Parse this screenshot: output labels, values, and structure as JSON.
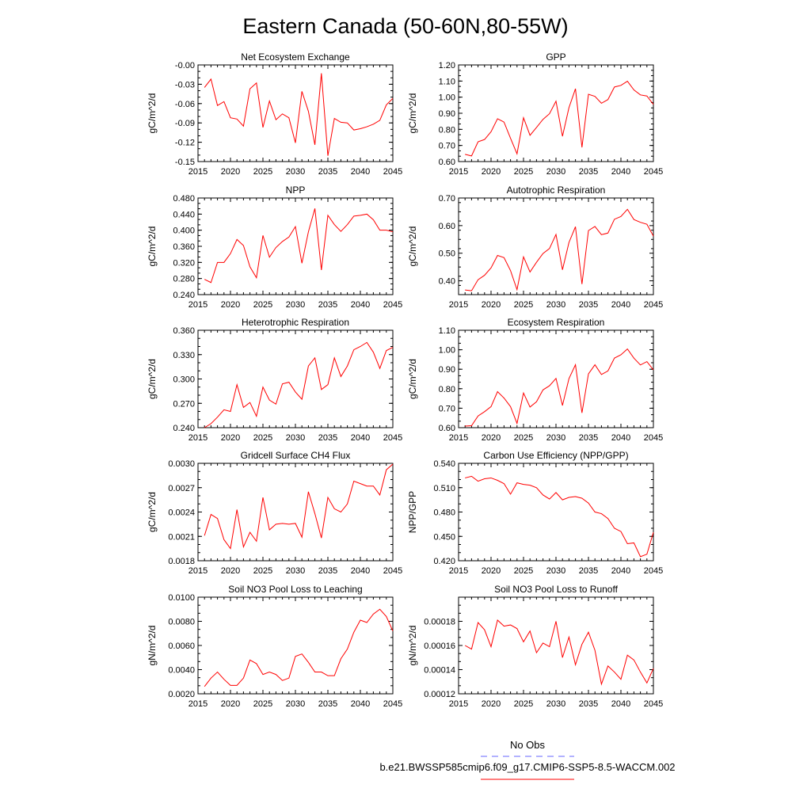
{
  "title": "Eastern Canada (50-60N,80-55W)",
  "legend": {
    "obs_label": "No Obs",
    "obs_color": "#6666ff",
    "model_label": "b.e21.BWSSP585cmip6.f09_g17.CMIP6-SSP5-8.5-WACCM.002",
    "model_color": "#ff0000"
  },
  "chart_data": [
    {
      "type": "line",
      "title": "Net Ecosystem Exchange",
      "ylabel": "gC/m^2/d",
      "xlim": [
        2015,
        2045
      ],
      "ylim": [
        -0.15,
        0.0
      ],
      "xticks": [
        2015,
        2020,
        2025,
        2030,
        2035,
        2040,
        2045
      ],
      "yticks": [
        "-0.00",
        "-0.03",
        "-0.06",
        "-0.09",
        "-0.12",
        "-0.15"
      ],
      "ytick_values": [
        0.0,
        -0.03,
        -0.06,
        -0.09,
        -0.12,
        -0.15
      ],
      "x": [
        2016,
        2017,
        2018,
        2019,
        2020,
        2021,
        2022,
        2023,
        2024,
        2025,
        2026,
        2027,
        2028,
        2029,
        2030,
        2031,
        2032,
        2033,
        2034,
        2035,
        2036,
        2037,
        2038,
        2039,
        2040,
        2041,
        2042,
        2043,
        2044,
        2045
      ],
      "values": [
        -0.035,
        -0.022,
        -0.063,
        -0.057,
        -0.082,
        -0.084,
        -0.095,
        -0.037,
        -0.028,
        -0.097,
        -0.056,
        -0.085,
        -0.076,
        -0.082,
        -0.121,
        -0.041,
        -0.072,
        -0.124,
        -0.013,
        -0.141,
        -0.083,
        -0.089,
        -0.09,
        -0.101,
        -0.099,
        -0.096,
        -0.092,
        -0.086,
        -0.062,
        -0.052
      ]
    },
    {
      "type": "line",
      "title": "GPP",
      "ylabel": "gC/m^2/d",
      "xlim": [
        2015,
        2045
      ],
      "ylim": [
        0.6,
        1.2
      ],
      "xticks": [
        2015,
        2020,
        2025,
        2030,
        2035,
        2040,
        2045
      ],
      "yticks": [
        "1.20",
        "1.10",
        "1.00",
        "0.90",
        "0.80",
        "0.70",
        "0.60"
      ],
      "ytick_values": [
        1.2,
        1.1,
        1.0,
        0.9,
        0.8,
        0.7,
        0.6
      ],
      "x": [
        2016,
        2017,
        2018,
        2019,
        2020,
        2021,
        2022,
        2023,
        2024,
        2025,
        2026,
        2027,
        2028,
        2029,
        2030,
        2031,
        2032,
        2033,
        2034,
        2035,
        2036,
        2037,
        2038,
        2039,
        2040,
        2041,
        2042,
        2043,
        2044,
        2045
      ],
      "values": [
        0.645,
        0.635,
        0.723,
        0.737,
        0.785,
        0.866,
        0.845,
        0.745,
        0.648,
        0.872,
        0.763,
        0.812,
        0.862,
        0.897,
        0.975,
        0.757,
        0.935,
        1.052,
        0.688,
        1.018,
        1.005,
        0.962,
        0.985,
        1.063,
        1.073,
        1.099,
        1.045,
        1.014,
        1.007,
        0.955
      ]
    },
    {
      "type": "line",
      "title": "NPP",
      "ylabel": "gC/m^2/d",
      "xlim": [
        2015,
        2045
      ],
      "ylim": [
        0.24,
        0.48
      ],
      "xticks": [
        2015,
        2020,
        2025,
        2030,
        2035,
        2040,
        2045
      ],
      "yticks": [
        "0.480",
        "0.440",
        "0.400",
        "0.360",
        "0.320",
        "0.280",
        "0.240"
      ],
      "ytick_values": [
        0.48,
        0.44,
        0.4,
        0.36,
        0.32,
        0.28,
        0.24
      ],
      "x": [
        2016,
        2017,
        2018,
        2019,
        2020,
        2021,
        2022,
        2023,
        2024,
        2025,
        2026,
        2027,
        2028,
        2029,
        2030,
        2031,
        2032,
        2033,
        2034,
        2035,
        2036,
        2037,
        2038,
        2039,
        2040,
        2041,
        2042,
        2043,
        2044,
        2045
      ],
      "values": [
        0.278,
        0.27,
        0.32,
        0.32,
        0.342,
        0.377,
        0.362,
        0.309,
        0.282,
        0.387,
        0.333,
        0.357,
        0.372,
        0.383,
        0.409,
        0.318,
        0.396,
        0.454,
        0.301,
        0.437,
        0.414,
        0.397,
        0.414,
        0.435,
        0.437,
        0.44,
        0.426,
        0.4,
        0.4,
        0.396
      ]
    },
    {
      "type": "line",
      "title": "Autotrophic Respiration",
      "ylabel": "gC/m^2/d",
      "xlim": [
        2015,
        2045
      ],
      "ylim": [
        0.35,
        0.7
      ],
      "xticks": [
        2015,
        2020,
        2025,
        2030,
        2035,
        2040,
        2045
      ],
      "yticks": [
        "0.70",
        "0.60",
        "0.50",
        "0.40"
      ],
      "ytick_values": [
        0.7,
        0.6,
        0.5,
        0.4
      ],
      "x": [
        2016,
        2017,
        2018,
        2019,
        2020,
        2021,
        2022,
        2023,
        2024,
        2025,
        2026,
        2027,
        2028,
        2029,
        2030,
        2031,
        2032,
        2033,
        2034,
        2035,
        2036,
        2037,
        2038,
        2039,
        2040,
        2041,
        2042,
        2043,
        2044,
        2045
      ],
      "values": [
        0.367,
        0.364,
        0.404,
        0.42,
        0.447,
        0.492,
        0.484,
        0.437,
        0.368,
        0.487,
        0.432,
        0.467,
        0.499,
        0.517,
        0.568,
        0.44,
        0.539,
        0.596,
        0.388,
        0.582,
        0.597,
        0.567,
        0.573,
        0.623,
        0.633,
        0.659,
        0.622,
        0.612,
        0.605,
        0.562
      ]
    },
    {
      "type": "line",
      "title": "Heterotrophic Respiration",
      "ylabel": "gC/m^2/d",
      "xlim": [
        2015,
        2045
      ],
      "ylim": [
        0.24,
        0.36
      ],
      "xticks": [
        2015,
        2020,
        2025,
        2030,
        2035,
        2040,
        2045
      ],
      "yticks": [
        "0.360",
        "0.330",
        "0.300",
        "0.270",
        "0.240"
      ],
      "ytick_values": [
        0.36,
        0.33,
        0.3,
        0.27,
        0.24
      ],
      "x": [
        2016,
        2017,
        2018,
        2019,
        2020,
        2021,
        2022,
        2023,
        2024,
        2025,
        2026,
        2027,
        2028,
        2029,
        2030,
        2031,
        2032,
        2033,
        2034,
        2035,
        2036,
        2037,
        2038,
        2039,
        2040,
        2041,
        2042,
        2043,
        2044,
        2045
      ],
      "values": [
        0.24,
        0.245,
        0.253,
        0.262,
        0.26,
        0.293,
        0.265,
        0.271,
        0.254,
        0.29,
        0.274,
        0.269,
        0.294,
        0.296,
        0.284,
        0.275,
        0.316,
        0.326,
        0.287,
        0.293,
        0.326,
        0.303,
        0.316,
        0.336,
        0.34,
        0.345,
        0.333,
        0.313,
        0.335,
        0.339
      ]
    },
    {
      "type": "line",
      "title": "Ecosystem Respiration",
      "ylabel": "gC/m^2/d",
      "xlim": [
        2015,
        2045
      ],
      "ylim": [
        0.6,
        1.1
      ],
      "xticks": [
        2015,
        2020,
        2025,
        2030,
        2035,
        2040,
        2045
      ],
      "yticks": [
        "1.10",
        "1.00",
        "0.90",
        "0.80",
        "0.70",
        "0.60"
      ],
      "ytick_values": [
        1.1,
        1.0,
        0.9,
        0.8,
        0.7,
        0.6
      ],
      "x": [
        2016,
        2017,
        2018,
        2019,
        2020,
        2021,
        2022,
        2023,
        2024,
        2025,
        2026,
        2027,
        2028,
        2029,
        2030,
        2031,
        2032,
        2033,
        2034,
        2035,
        2036,
        2037,
        2038,
        2039,
        2040,
        2041,
        2042,
        2043,
        2044,
        2045
      ],
      "values": [
        0.608,
        0.61,
        0.66,
        0.682,
        0.708,
        0.785,
        0.752,
        0.708,
        0.622,
        0.778,
        0.706,
        0.733,
        0.794,
        0.815,
        0.853,
        0.714,
        0.852,
        0.923,
        0.676,
        0.876,
        0.923,
        0.873,
        0.891,
        0.957,
        0.974,
        1.004,
        0.957,
        0.922,
        0.939,
        0.897
      ]
    },
    {
      "type": "line",
      "title": "Gridcell Surface CH4 Flux",
      "ylabel": "gC/m^2/d",
      "xlim": [
        2015,
        2045
      ],
      "ylim": [
        0.0018,
        0.003
      ],
      "xticks": [
        2015,
        2020,
        2025,
        2030,
        2035,
        2040,
        2045
      ],
      "yticks": [
        "0.0030",
        "0.0027",
        "0.0024",
        "0.0021",
        "0.0018"
      ],
      "ytick_values": [
        0.003,
        0.0027,
        0.0024,
        0.0021,
        0.0018
      ],
      "x": [
        2016,
        2017,
        2018,
        2019,
        2020,
        2021,
        2022,
        2023,
        2024,
        2025,
        2026,
        2027,
        2028,
        2029,
        2030,
        2031,
        2032,
        2033,
        2034,
        2035,
        2036,
        2037,
        2038,
        2039,
        2040,
        2041,
        2042,
        2043,
        2044,
        2045
      ],
      "values": [
        0.00211,
        0.00237,
        0.00232,
        0.00206,
        0.00195,
        0.00243,
        0.00197,
        0.00215,
        0.00204,
        0.00258,
        0.00218,
        0.00225,
        0.00226,
        0.00225,
        0.00226,
        0.00209,
        0.00265,
        0.00238,
        0.00208,
        0.00258,
        0.00244,
        0.0024,
        0.0025,
        0.00278,
        0.00275,
        0.00272,
        0.00272,
        0.00261,
        0.00292,
        0.00299
      ]
    },
    {
      "type": "line",
      "title": "Carbon Use Efficiency (NPP/GPP)",
      "ylabel": "NPP/GPP",
      "xlim": [
        2015,
        2045
      ],
      "ylim": [
        0.42,
        0.54
      ],
      "xticks": [
        2015,
        2020,
        2025,
        2030,
        2035,
        2040,
        2045
      ],
      "yticks": [
        "0.540",
        "0.510",
        "0.480",
        "0.450",
        "0.420"
      ],
      "ytick_values": [
        0.54,
        0.51,
        0.48,
        0.45,
        0.42
      ],
      "x": [
        2016,
        2017,
        2018,
        2019,
        2020,
        2021,
        2022,
        2023,
        2024,
        2025,
        2026,
        2027,
        2028,
        2029,
        2030,
        2031,
        2032,
        2033,
        2034,
        2035,
        2036,
        2037,
        2038,
        2039,
        2040,
        2041,
        2042,
        2043,
        2044,
        2045
      ],
      "values": [
        0.522,
        0.524,
        0.518,
        0.521,
        0.522,
        0.519,
        0.515,
        0.502,
        0.516,
        0.514,
        0.513,
        0.51,
        0.501,
        0.496,
        0.504,
        0.495,
        0.498,
        0.499,
        0.497,
        0.491,
        0.48,
        0.478,
        0.472,
        0.46,
        0.456,
        0.441,
        0.442,
        0.425,
        0.428,
        0.455
      ]
    },
    {
      "type": "line",
      "title": "Soil NO3 Pool Loss to Leaching",
      "ylabel": "gN/m^2/d",
      "xlim": [
        2015,
        2045
      ],
      "ylim": [
        0.002,
        0.01
      ],
      "xticks": [
        2015,
        2020,
        2025,
        2030,
        2035,
        2040,
        2045
      ],
      "yticks": [
        "0.0100",
        "0.0080",
        "0.0060",
        "0.0040",
        "0.0020"
      ],
      "ytick_values": [
        0.01,
        0.008,
        0.006,
        0.004,
        0.002
      ],
      "x": [
        2016,
        2017,
        2018,
        2019,
        2020,
        2021,
        2022,
        2023,
        2024,
        2025,
        2026,
        2027,
        2028,
        2029,
        2030,
        2031,
        2032,
        2033,
        2034,
        2035,
        2036,
        2037,
        2038,
        2039,
        2040,
        2041,
        2042,
        2043,
        2044,
        2045
      ],
      "values": [
        0.0026,
        0.0033,
        0.0038,
        0.0032,
        0.0027,
        0.0027,
        0.0033,
        0.0048,
        0.0045,
        0.0036,
        0.0038,
        0.0036,
        0.0031,
        0.0033,
        0.0051,
        0.0053,
        0.0046,
        0.0038,
        0.0038,
        0.0035,
        0.0035,
        0.0049,
        0.0057,
        0.0071,
        0.0081,
        0.0079,
        0.0086,
        0.009,
        0.0084,
        0.0072
      ]
    },
    {
      "type": "line",
      "title": "Soil NO3 Pool Loss to Runoff",
      "ylabel": "gN/m^2/d",
      "xlim": [
        2015,
        2045
      ],
      "ylim": [
        0.00012,
        0.0002
      ],
      "xticks": [
        2015,
        2020,
        2025,
        2030,
        2035,
        2040,
        2045
      ],
      "yticks": [
        "0.00018",
        "0.00016",
        "0.00014",
        "0.00012"
      ],
      "ytick_values": [
        0.00018,
        0.00016,
        0.00014,
        0.00012
      ],
      "x": [
        2016,
        2017,
        2018,
        2019,
        2020,
        2021,
        2022,
        2023,
        2024,
        2025,
        2026,
        2027,
        2028,
        2029,
        2030,
        2031,
        2032,
        2033,
        2034,
        2035,
        2036,
        2037,
        2038,
        2039,
        2040,
        2041,
        2042,
        2043,
        2044,
        2045
      ],
      "values": [
        0.00016,
        0.000157,
        0.000179,
        0.000173,
        0.000159,
        0.000181,
        0.000176,
        0.000177,
        0.000174,
        0.000163,
        0.000172,
        0.000154,
        0.000162,
        0.000159,
        0.00018,
        0.00015,
        0.000167,
        0.000144,
        0.000161,
        0.000171,
        0.000156,
        0.000128,
        0.000143,
        0.000138,
        0.000132,
        0.000152,
        0.000148,
        0.000138,
        0.000129,
        0.000141
      ]
    }
  ]
}
